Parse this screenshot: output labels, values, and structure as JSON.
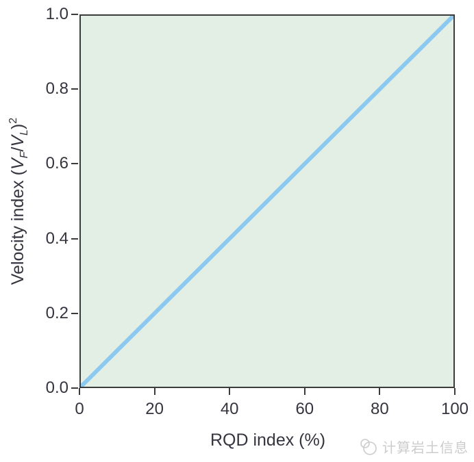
{
  "chart_data": {
    "type": "line",
    "title": "",
    "xlabel": "RQD index (%)",
    "ylabel": "Velocity index (V_F/V_L)²",
    "ylabel_parts": [
      {
        "t": "Velocity index (",
        "style": "normal"
      },
      {
        "t": "V",
        "style": "italic"
      },
      {
        "t": "F",
        "style": "sub"
      },
      {
        "t": "/",
        "style": "normal"
      },
      {
        "t": "V",
        "style": "italic"
      },
      {
        "t": "L",
        "style": "sub"
      },
      {
        "t": ")",
        "style": "normal"
      },
      {
        "t": "2",
        "style": "sup"
      }
    ],
    "series": [
      {
        "name": "velocity-index-vs-rqd-identity-line",
        "x": [
          0,
          100
        ],
        "y": [
          0.0,
          1.0
        ]
      }
    ],
    "xlim": [
      0,
      100
    ],
    "ylim": [
      0.0,
      1.0
    ],
    "xticks": [
      {
        "value": 0,
        "label": "0"
      },
      {
        "value": 20,
        "label": "20"
      },
      {
        "value": 40,
        "label": "40"
      },
      {
        "value": 60,
        "label": "60"
      },
      {
        "value": 80,
        "label": "80"
      },
      {
        "value": 100,
        "label": "100"
      }
    ],
    "yticks": [
      {
        "value": 1.0,
        "label": "1.0"
      },
      {
        "value": 0.8,
        "label": "0.8"
      },
      {
        "value": 0.6,
        "label": "0.6"
      },
      {
        "value": 0.4,
        "label": "0.4"
      },
      {
        "value": 0.2,
        "label": "0.2"
      },
      {
        "value": 0.0,
        "label": "0.0"
      }
    ],
    "grid": false,
    "legend": null,
    "colors": {
      "line": "#8cc9f0",
      "plot_bg": "#e3efe4",
      "axis": "#3b3b3b",
      "text": "#35353f"
    }
  },
  "watermark": {
    "text": "计算岩土信息",
    "icon": "overlapping-circles-logo",
    "color": "#cccccc"
  }
}
